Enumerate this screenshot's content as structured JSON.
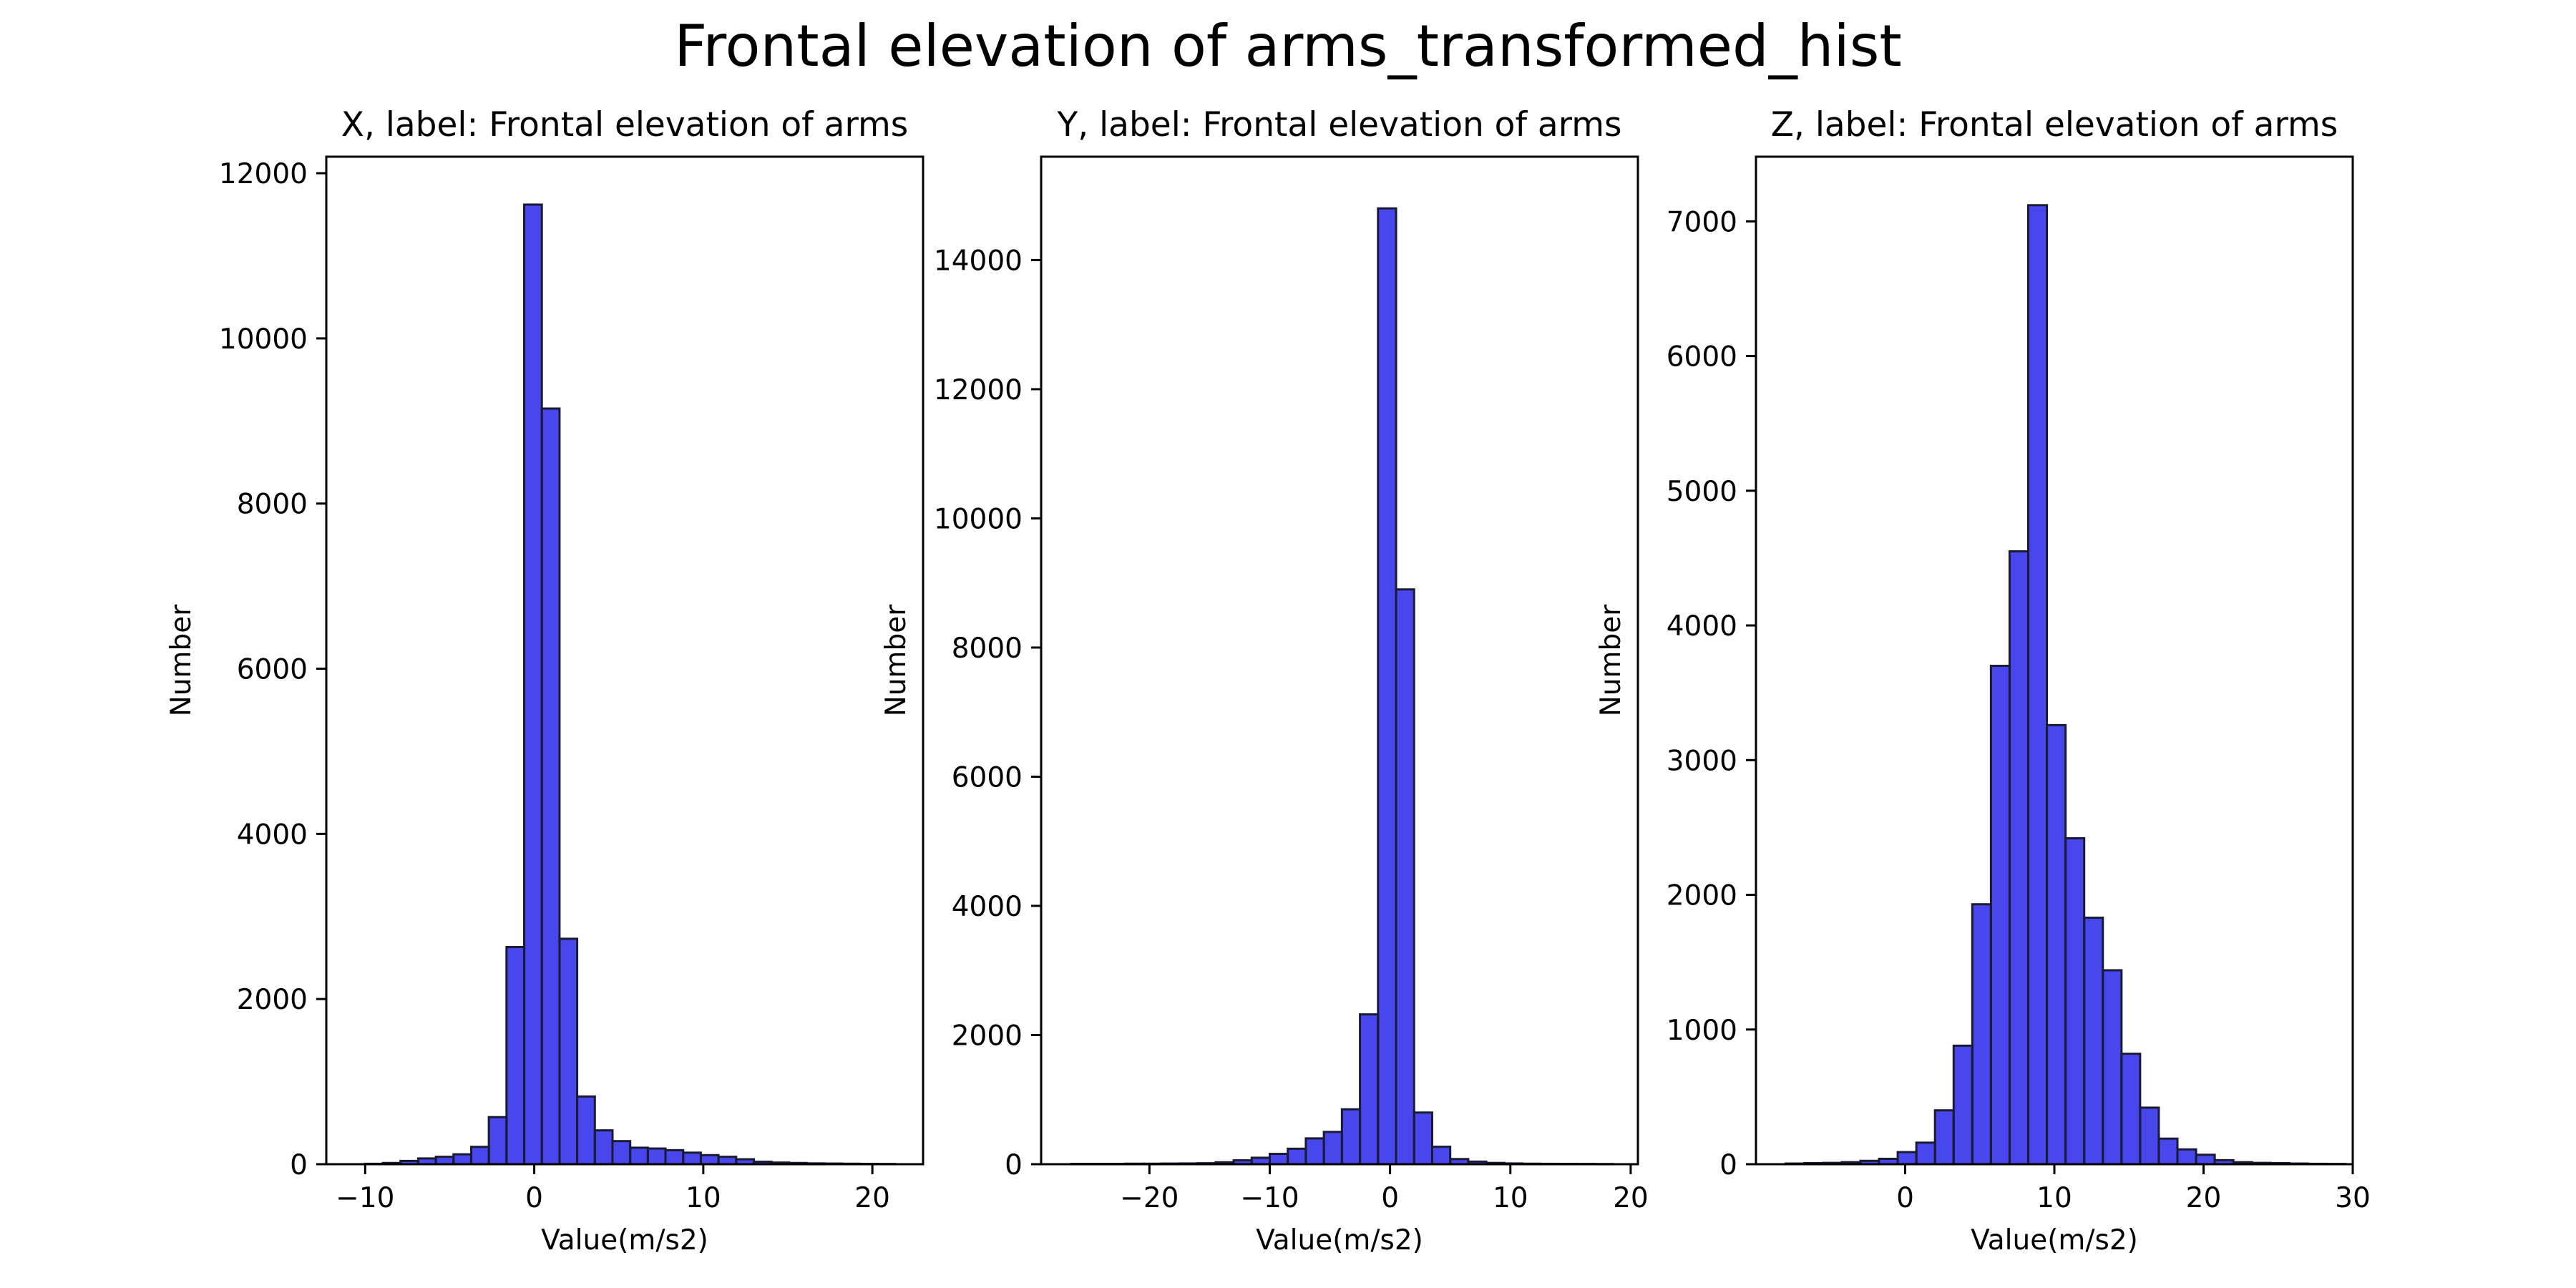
{
  "figure": {
    "title": "Frontal elevation of arms_transformed_hist"
  },
  "colors": {
    "bar_fill": "#0000e6",
    "bar_opacity": 0.72,
    "bar_edge": "#1a1a33",
    "axis": "#000000"
  },
  "chart_data": [
    {
      "type": "bar",
      "title": "X, label: Frontal elevation of arms",
      "xlabel": "Value(m/s2)",
      "ylabel": "Number",
      "xlim": [
        -12.3,
        23.0
      ],
      "ylim": [
        0,
        12200
      ],
      "xticks": [
        -10,
        0,
        10,
        20
      ],
      "yticks": [
        0,
        2000,
        4000,
        6000,
        8000,
        10000,
        12000
      ],
      "grid": false,
      "bin_start": -10.0,
      "bin_width": 1.045,
      "values": [
        5,
        15,
        40,
        70,
        90,
        120,
        210,
        570,
        2630,
        11620,
        9150,
        2730,
        820,
        410,
        280,
        200,
        190,
        170,
        140,
        110,
        90,
        60,
        30,
        20,
        15,
        10,
        8,
        6,
        4,
        3
      ]
    },
    {
      "type": "bar",
      "title": "Y, label: Frontal elevation of arms",
      "xlabel": "Value(m/s2)",
      "ylabel": "Number",
      "xlim": [
        -29.0,
        20.6
      ],
      "ylim": [
        0,
        15600
      ],
      "xticks": [
        -20,
        -10,
        0,
        10,
        20
      ],
      "yticks": [
        0,
        2000,
        4000,
        6000,
        8000,
        10000,
        12000,
        14000
      ],
      "grid": false,
      "bin_start": -26.5,
      "bin_width": 1.5,
      "values": [
        5,
        5,
        5,
        8,
        8,
        10,
        12,
        15,
        30,
        60,
        100,
        160,
        240,
        400,
        500,
        850,
        2320,
        14800,
        8900,
        800,
        270,
        80,
        40,
        20,
        12,
        8,
        6,
        5,
        4,
        3
      ]
    },
    {
      "type": "bar",
      "title": "Z, label: Frontal elevation of arms",
      "xlabel": "Value(m/s2)",
      "ylabel": "Number",
      "xlim": [
        -10.0,
        30.0
      ],
      "ylim": [
        0,
        7480
      ],
      "xticks": [
        0,
        10,
        20,
        30
      ],
      "yticks": [
        0,
        1000,
        2000,
        3000,
        4000,
        5000,
        6000,
        7000
      ],
      "grid": false,
      "bin_start": -8.0,
      "bin_width": 1.25,
      "values": [
        5,
        8,
        10,
        15,
        25,
        40,
        90,
        160,
        400,
        880,
        1930,
        3700,
        4550,
        7120,
        3260,
        2420,
        1830,
        1440,
        820,
        420,
        190,
        110,
        70,
        30,
        15,
        10,
        8,
        5,
        3,
        2
      ]
    }
  ]
}
